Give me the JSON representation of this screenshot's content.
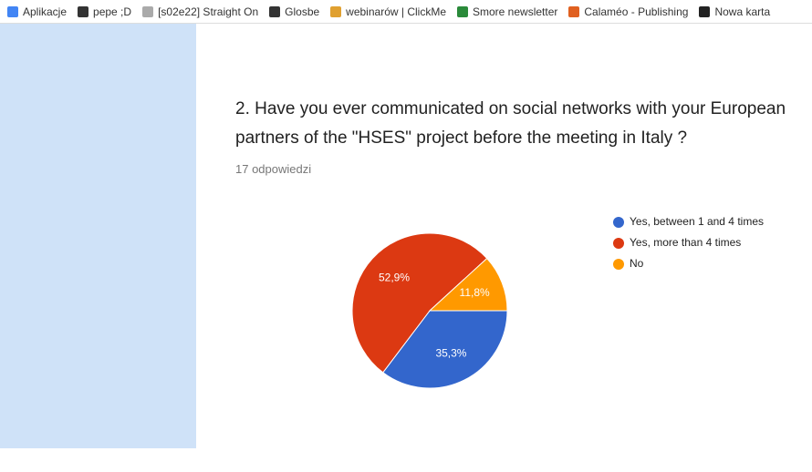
{
  "bookmarks": [
    "Aplikacje",
    "pepe ;D",
    "[s02e22] Straight On",
    "Glosbe",
    "webinarów | ClickMe",
    "Smore newsletter",
    "Calaméo - Publishing",
    "Nowa karta"
  ],
  "question": {
    "title_lines": [
      "2. Have you ever communicated on social networks with your European",
      "partners of the \"HSES\" project before the meeting in Italy ?"
    ],
    "responses": "17 odpowiedzi"
  },
  "chart_data": {
    "type": "pie",
    "categories": [
      "Yes, between 1 and 4 times",
      "Yes, more than 4 times",
      "No"
    ],
    "values": [
      35.3,
      52.9,
      11.8
    ],
    "value_labels": [
      "35,3%",
      "52,9%",
      "11,8%"
    ],
    "colors": [
      "#3366cc",
      "#dc3912",
      "#ff9900"
    ],
    "legend": "right"
  }
}
